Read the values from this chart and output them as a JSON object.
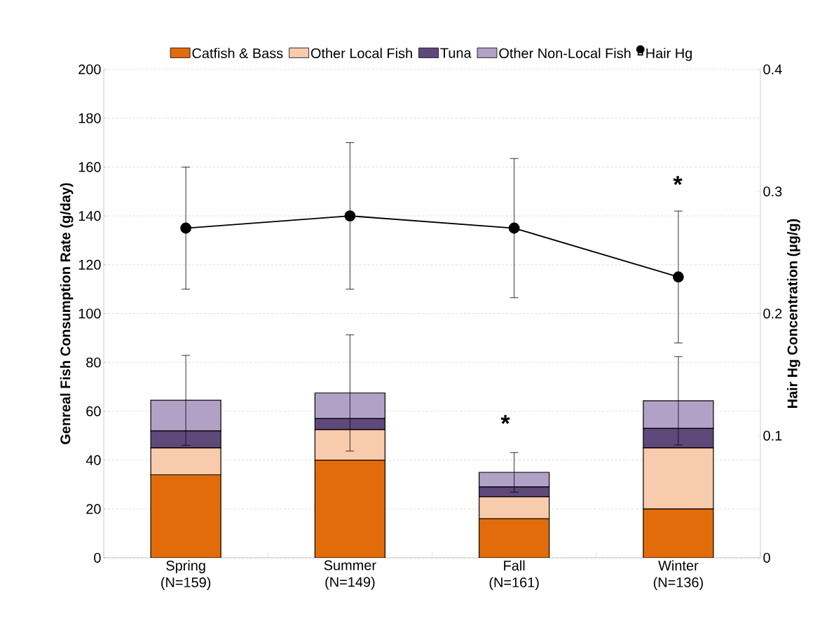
{
  "chart_data": {
    "type": "bar",
    "stacked": true,
    "ylabel": "Genreal Fish Consumption Rate (g/day)",
    "y2label": "Hair Hg Concentration (µg/g)",
    "categories": [
      "Spring (N=159)",
      "Summer (N=149)",
      "Fall (N=161)",
      "Winter (N=136)"
    ],
    "series": [
      {
        "name": "Catfish & Bass",
        "color": "#e36c0a",
        "values": [
          34,
          40,
          16,
          20
        ]
      },
      {
        "name": "Other Local Fish",
        "color": "#f8cbad",
        "values": [
          11,
          12.5,
          9,
          25
        ]
      },
      {
        "name": "Tuna",
        "color": "#5f497a",
        "values": [
          7,
          4.5,
          4,
          8
        ]
      },
      {
        "name": "Other Non-Local Fish",
        "color": "#b2a1c7",
        "values": [
          12.5,
          10.5,
          6,
          11.3
        ],
        "errors": [
          18.4,
          23.8,
          8.1,
          18.1
        ]
      },
      {
        "name": "Hair Hg",
        "type": "line",
        "axis": "y2",
        "color": "#000000",
        "marker": "circle",
        "values": [
          0.27,
          0.28,
          0.27,
          0.23
        ],
        "errors": [
          0.05,
          0.06,
          0.057,
          0.054
        ]
      }
    ],
    "ylim": [
      0,
      200
    ],
    "yticks": [
      0,
      20,
      40,
      60,
      80,
      100,
      120,
      140,
      160,
      180,
      200
    ],
    "y2lim": [
      0,
      0.4
    ],
    "y2ticks": [
      0,
      0.1,
      0.2,
      0.3,
      0.4
    ],
    "grid": "y",
    "legend": "top",
    "annotations": [
      "*",
      "*"
    ]
  }
}
